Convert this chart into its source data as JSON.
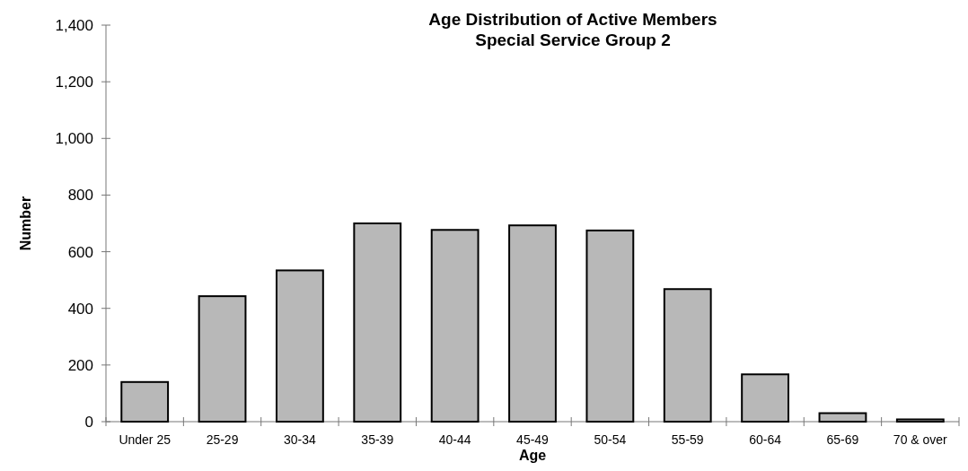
{
  "chart_data": {
    "type": "bar",
    "title": "Age Distribution of Active Members",
    "subtitle": "Special Service Group 2",
    "xlabel": "Age",
    "ylabel": "Number",
    "categories": [
      "Under 25",
      "25-29",
      "30-34",
      "35-39",
      "40-44",
      "45-49",
      "50-54",
      "55-59",
      "60-64",
      "65-69",
      "70 & over"
    ],
    "values": [
      140,
      443,
      534,
      700,
      677,
      693,
      675,
      468,
      167,
      30,
      8
    ],
    "color": "#b8b8b8",
    "ylim": [
      0,
      1400
    ],
    "yticks": [
      0,
      {
        "value": 200,
        "label": "200"
      },
      {
        "value": 400,
        "label": "400"
      },
      {
        "value": 600,
        "label": "600"
      },
      {
        "value": 800,
        "label": "800"
      },
      {
        "value": 1000,
        "label": "1,000"
      },
      {
        "value": 1200,
        "label": "1,200"
      },
      {
        "value": 1400,
        "label": "1,400"
      }
    ],
    "grid": false
  }
}
